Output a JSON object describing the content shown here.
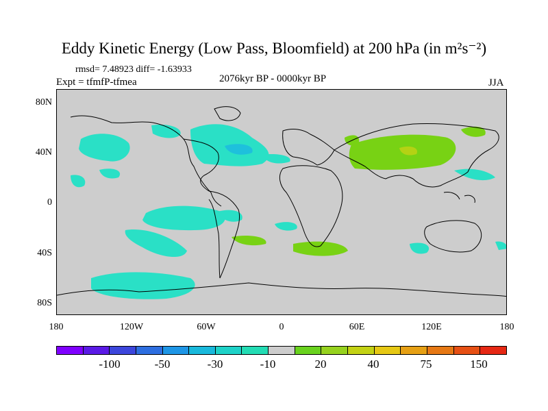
{
  "title": "Eddy Kinetic Energy (Low Pass, Bloomfield) at 200 hPa (in m²s⁻²)",
  "stats_line": "rmsd= 7.48923 diff= -1.63933",
  "experiment": "Expt = tfmfP-tfmea",
  "period": "2076kyr BP - 0000kyr BP",
  "season": "JJA",
  "lat_labels": [
    "80N",
    "40N",
    "0",
    "40S",
    "80S"
  ],
  "lon_labels": [
    "180",
    "120W",
    "60W",
    "0",
    "60E",
    "120E",
    "180"
  ],
  "colorbar": {
    "labels": [
      "-100",
      "-50",
      "-30",
      "-10",
      "20",
      "40",
      "75",
      "150"
    ],
    "colors": [
      "#7f00ff",
      "#5a1ae6",
      "#3c46dc",
      "#2d6ee0",
      "#1e96e6",
      "#19b9dc",
      "#1ed2c8",
      "#23dcb4",
      "#cdcdcd",
      "#69d21e",
      "#96d21e",
      "#c3d214",
      "#e6c814",
      "#e6a014",
      "#e67814",
      "#e65014",
      "#e62814"
    ]
  },
  "map_colors": {
    "background": "#cdcdcd",
    "negative": "#2ae0c6",
    "negative_strong": "#1ec0dc",
    "positive": "#78d214",
    "positive_strong": "#b4d214"
  }
}
